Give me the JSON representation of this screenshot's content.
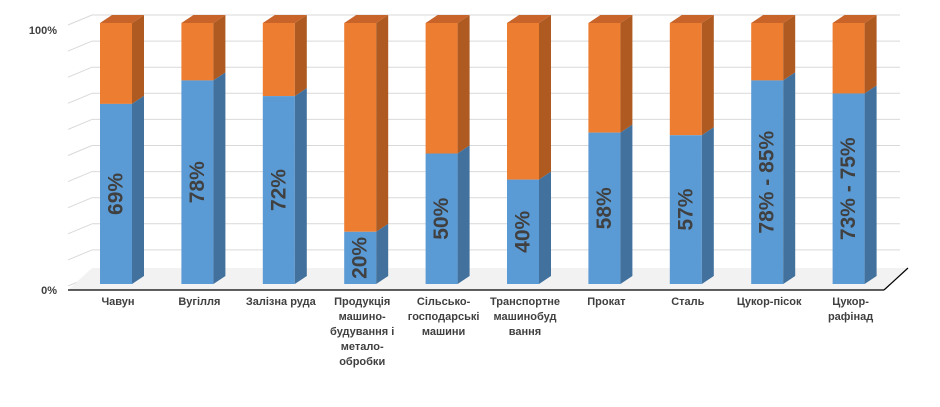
{
  "chart_data": {
    "type": "bar",
    "stacked": true,
    "three_d": true,
    "categories": [
      [
        "Чавун"
      ],
      [
        "Вугілля"
      ],
      [
        "Залізна руда"
      ],
      [
        "Продукція",
        "машино-",
        "будування і",
        "метало-",
        "обробки"
      ],
      [
        "Сільсько-",
        "господарські",
        "машини"
      ],
      [
        "Транспортне",
        "машинобуд",
        "вання"
      ],
      [
        "Прокат"
      ],
      [
        "Сталь"
      ],
      [
        "Цукор-пісок"
      ],
      [
        "Цукор-",
        "рафінад"
      ]
    ],
    "values": [
      69,
      78,
      72,
      20,
      50,
      40,
      58,
      57,
      78,
      73
    ],
    "data_labels": [
      "69%",
      "78%",
      "72%",
      "20%",
      "50%",
      "40%",
      "58%",
      "57%",
      "78% - 85%",
      "73% - 75%"
    ],
    "y_ticks": [
      "0%",
      "100%"
    ],
    "ylim": [
      0,
      100
    ],
    "grid": true,
    "colors": {
      "value_front": "#5B9BD5",
      "value_side": "#41719C",
      "value_top": "#9DC3E6",
      "rest_front": "#ED7D31",
      "rest_side": "#AE5A21",
      "rest_top": "#C8642A",
      "grid": "#D9D9D9",
      "floor": "#000000",
      "text": "#404040"
    }
  }
}
